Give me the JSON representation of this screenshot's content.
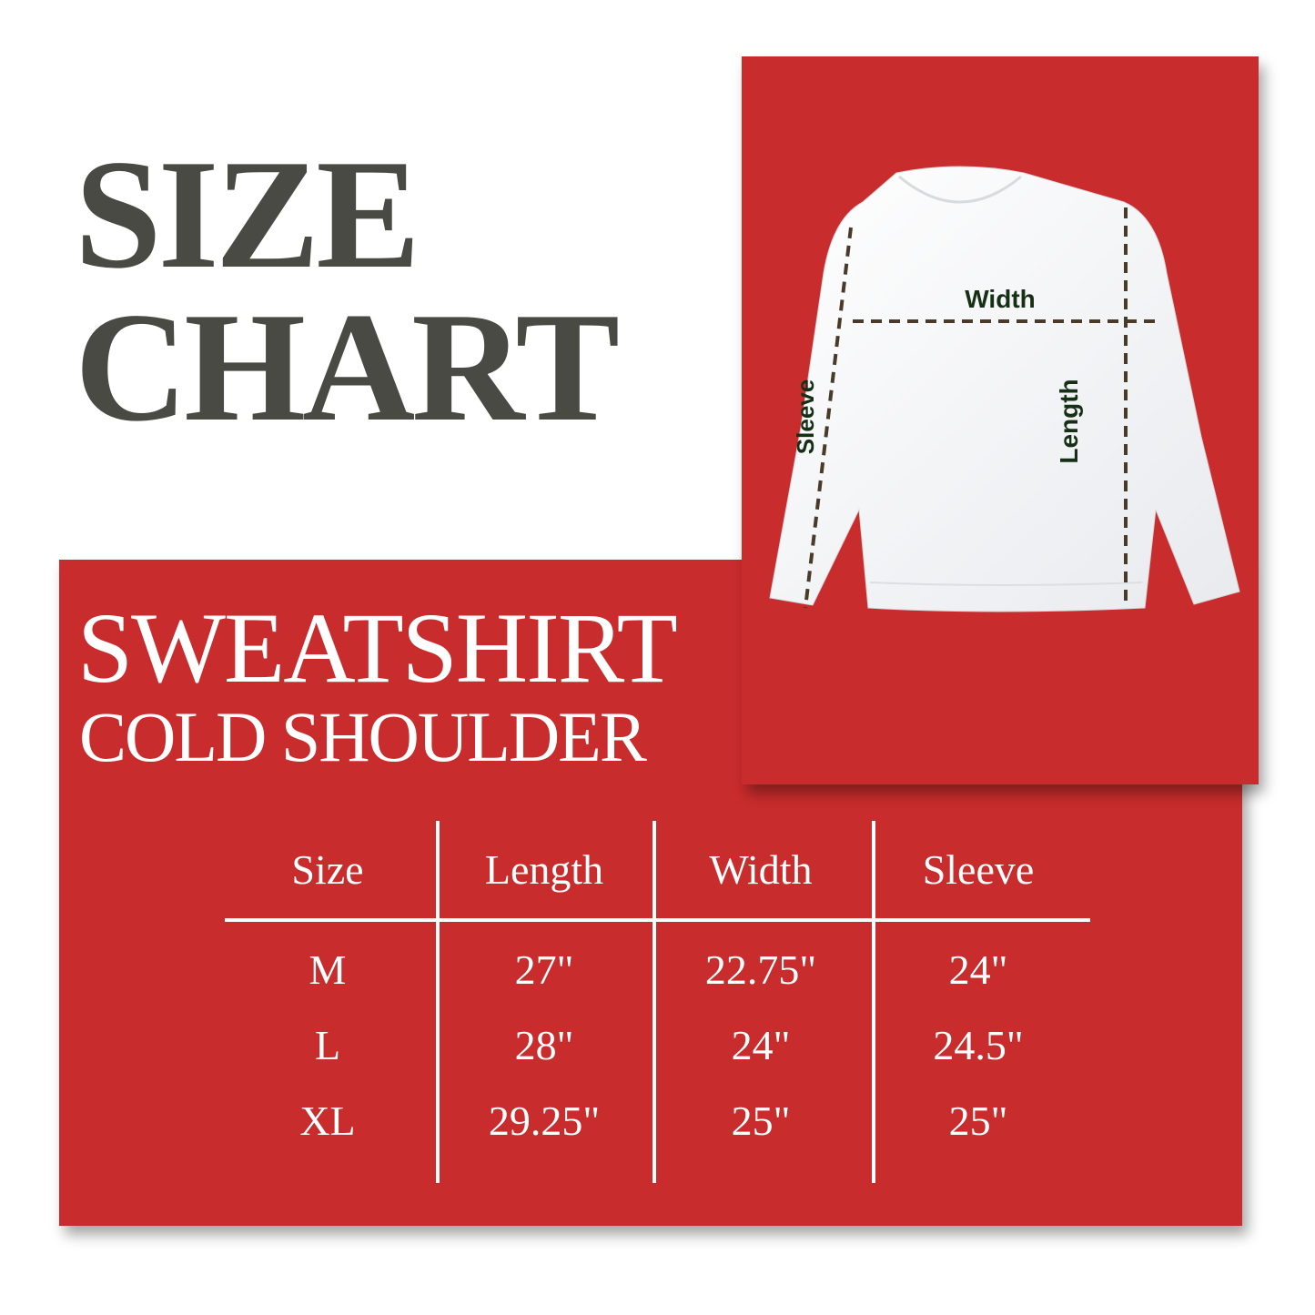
{
  "title": {
    "line1": "SIZE",
    "line2": "CHART"
  },
  "product": {
    "name": "SWEATSHIRT",
    "style": "COLD SHOULDER"
  },
  "diagram": {
    "labels": {
      "width": "Width",
      "sleeve": "Sleeve",
      "length": "Length"
    },
    "garment_color": "#f4f5f7",
    "label_color": "#163016",
    "dash_color": "#4a3a2a"
  },
  "colors": {
    "panel": "#c92c2c",
    "title": "#4a4a44",
    "table_text": "#ffffff"
  },
  "table": {
    "headers": [
      "Size",
      "Length",
      "Width",
      "Sleeve"
    ],
    "rows": [
      [
        "M",
        "27\"",
        "22.75\"",
        "24\""
      ],
      [
        "L",
        "28\"",
        "24\"",
        "24.5\""
      ],
      [
        "XL",
        "29.25\"",
        "25\"",
        "25\""
      ]
    ]
  }
}
